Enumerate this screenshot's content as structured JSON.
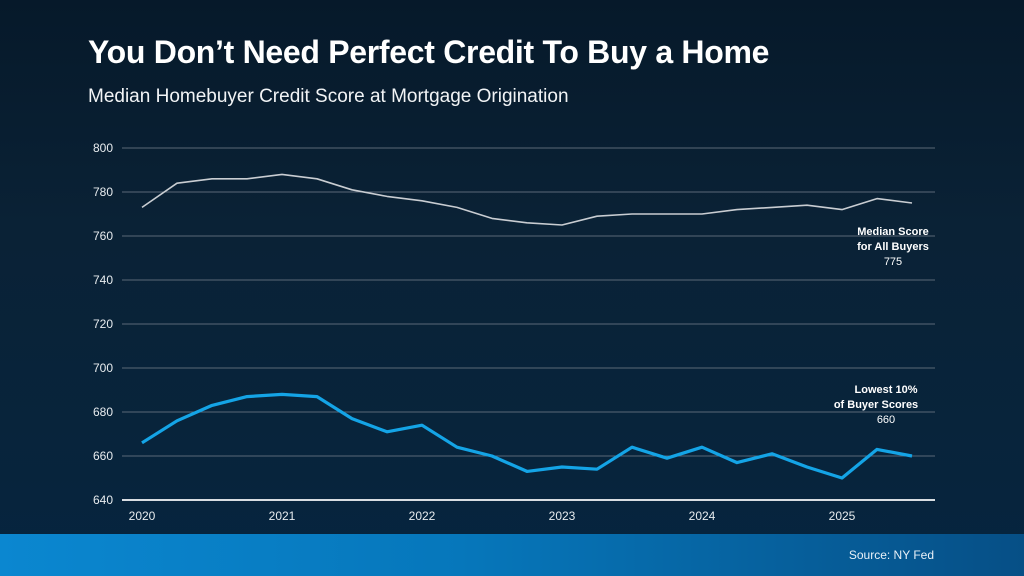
{
  "title": "You Don’t Need Perfect Credit To Buy a Home",
  "subtitle": "Median Homebuyer Credit Score at Mortgage Origination",
  "source": "Source: NY Fed",
  "colors": {
    "median": "#c9cdd2",
    "lowest": "#14a4e6",
    "grid": "#5a6877",
    "axis": "#d8dde2",
    "footer": "#0b87d0"
  },
  "annotations": {
    "median": {
      "line1": "Median Score",
      "line2": "for All Buyers",
      "value": "775"
    },
    "lowest": {
      "line1": "Lowest 10%",
      "line2": "of Buyer Scores",
      "value": "660"
    }
  },
  "chart_data": {
    "type": "line",
    "title": "You Don’t Need Perfect Credit To Buy a Home",
    "subtitle": "Median Homebuyer Credit Score at Mortgage Origination",
    "xlabel": "",
    "ylabel": "",
    "ylim": [
      640,
      800
    ],
    "yticks": [
      640,
      660,
      680,
      700,
      720,
      740,
      760,
      780,
      800
    ],
    "xtick_labels": [
      "2020",
      "2021",
      "2022",
      "2023",
      "2024",
      "2025"
    ],
    "grid": true,
    "x": [
      "2020Q1",
      "2020Q2",
      "2020Q3",
      "2020Q4",
      "2021Q1",
      "2021Q2",
      "2021Q3",
      "2021Q4",
      "2022Q1",
      "2022Q2",
      "2022Q3",
      "2022Q4",
      "2023Q1",
      "2023Q2",
      "2023Q3",
      "2023Q4",
      "2024Q1",
      "2024Q2",
      "2024Q3",
      "2024Q4",
      "2025Q1",
      "2025Q2",
      "2025Q3"
    ],
    "series": [
      {
        "name": "Median Score for All Buyers",
        "values": [
          773,
          784,
          786,
          786,
          788,
          786,
          781,
          778,
          776,
          773,
          768,
          766,
          765,
          769,
          770,
          770,
          770,
          772,
          773,
          774,
          772,
          777,
          775
        ]
      },
      {
        "name": "Lowest 10% of Buyer Scores",
        "values": [
          666,
          676,
          683,
          687,
          688,
          687,
          677,
          671,
          674,
          664,
          660,
          653,
          655,
          654,
          664,
          659,
          664,
          657,
          661,
          655,
          650,
          663,
          660
        ]
      }
    ],
    "source": "NY Fed"
  }
}
